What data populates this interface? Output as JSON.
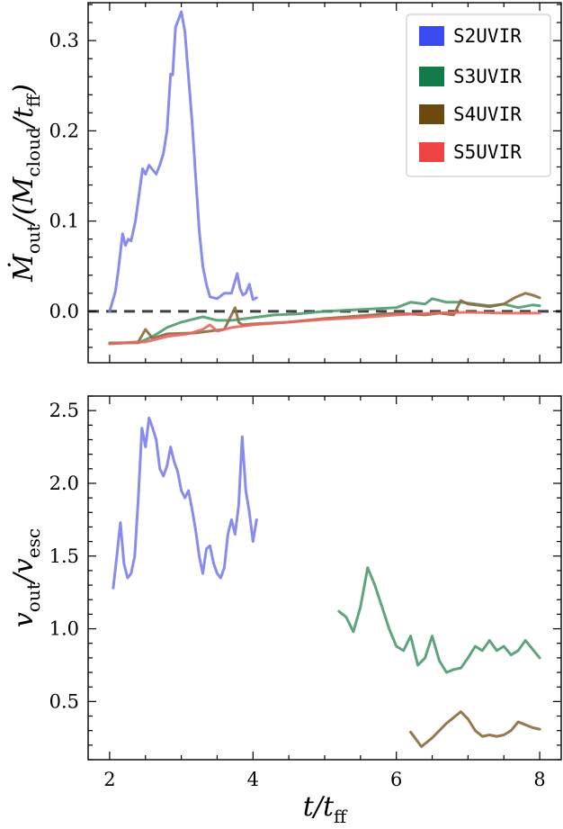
{
  "chart_data": [
    {
      "type": "line",
      "ylabel": "Ṁout/(Mcloud/tff)",
      "xlim": [
        1.7,
        8.3
      ],
      "ylim": [
        -0.057,
        0.342
      ],
      "xticks": [
        2,
        4,
        6,
        8
      ],
      "yticks": [
        0.0,
        0.1,
        0.2,
        0.3
      ],
      "ytick_labels": [
        "0.0",
        "0.1",
        "0.2",
        "0.3"
      ],
      "reference_line": {
        "y": 0.0,
        "style": "dashed",
        "color": "#404040"
      },
      "legend": {
        "placement": "top-right",
        "entries": [
          "S2UVIR",
          "S3UVIR",
          "S4UVIR",
          "S5UVIR"
        ]
      },
      "series": [
        {
          "name": "S2UVIR",
          "color": "#7B80E8",
          "x": [
            2.0,
            2.08,
            2.12,
            2.18,
            2.22,
            2.26,
            2.3,
            2.36,
            2.42,
            2.46,
            2.5,
            2.55,
            2.6,
            2.65,
            2.7,
            2.75,
            2.8,
            2.85,
            2.88,
            2.92,
            2.96,
            3.0,
            3.05,
            3.1,
            3.15,
            3.2,
            3.25,
            3.3,
            3.35,
            3.4,
            3.5,
            3.6,
            3.7,
            3.78,
            3.82,
            3.86,
            3.9,
            3.95,
            4.0,
            4.05
          ],
          "y": [
            0.0,
            0.022,
            0.045,
            0.086,
            0.073,
            0.08,
            0.078,
            0.1,
            0.135,
            0.158,
            0.152,
            0.162,
            0.157,
            0.152,
            0.162,
            0.175,
            0.2,
            0.263,
            0.262,
            0.315,
            0.323,
            0.332,
            0.31,
            0.26,
            0.21,
            0.15,
            0.09,
            0.05,
            0.03,
            0.016,
            0.014,
            0.02,
            0.02,
            0.042,
            0.025,
            0.018,
            0.02,
            0.03,
            0.013,
            0.015
          ]
        },
        {
          "name": "S3UVIR",
          "color": "#4E9A6F",
          "x": [
            2.0,
            2.4,
            2.6,
            2.8,
            3.0,
            3.2,
            3.3,
            3.5,
            3.7,
            3.9,
            4.1,
            4.3,
            4.6,
            5.0,
            5.5,
            6.0,
            6.2,
            6.4,
            6.5,
            6.7,
            6.9,
            7.1,
            7.3,
            7.5,
            7.7,
            7.9,
            8.0
          ],
          "y": [
            -0.035,
            -0.035,
            -0.028,
            -0.018,
            -0.012,
            -0.008,
            -0.006,
            -0.01,
            -0.01,
            -0.008,
            -0.006,
            -0.004,
            -0.003,
            0.0,
            0.002,
            0.004,
            0.01,
            0.008,
            0.014,
            0.01,
            0.01,
            0.008,
            0.006,
            0.008,
            0.004,
            0.007,
            0.006
          ]
        },
        {
          "name": "S4UVIR",
          "color": "#8C6A3E",
          "x": [
            2.0,
            2.4,
            2.5,
            2.6,
            2.8,
            3.2,
            3.6,
            3.75,
            3.8,
            3.85,
            4.0,
            4.5,
            5.0,
            5.5,
            6.0,
            6.2,
            6.4,
            6.6,
            6.8,
            6.9,
            7.0,
            7.3,
            7.5,
            7.65,
            7.8,
            7.9,
            8.0
          ],
          "y": [
            -0.036,
            -0.034,
            -0.02,
            -0.03,
            -0.025,
            -0.024,
            -0.02,
            0.004,
            -0.012,
            -0.015,
            -0.014,
            -0.012,
            -0.008,
            -0.005,
            -0.002,
            -0.003,
            -0.004,
            -0.002,
            -0.004,
            0.012,
            0.008,
            0.005,
            0.008,
            0.015,
            0.02,
            0.018,
            0.015
          ]
        },
        {
          "name": "S5UVIR",
          "color": "#E86760",
          "x": [
            2.0,
            2.5,
            2.8,
            3.1,
            3.3,
            3.4,
            3.5,
            3.7,
            4.0,
            4.5,
            5.0,
            5.5,
            6.0,
            6.5,
            7.0,
            7.5,
            8.0
          ],
          "y": [
            -0.036,
            -0.034,
            -0.028,
            -0.025,
            -0.02,
            -0.015,
            -0.022,
            -0.018,
            -0.015,
            -0.012,
            -0.009,
            -0.007,
            -0.004,
            -0.002,
            -0.001,
            -0.002,
            -0.002
          ]
        }
      ]
    },
    {
      "type": "line",
      "xlabel": "t/tff",
      "ylabel": "vout/vesc",
      "xlim": [
        1.7,
        8.3
      ],
      "ylim": [
        0.1,
        2.6
      ],
      "xticks": [
        2,
        4,
        6,
        8
      ],
      "xtick_labels": [
        "2",
        "4",
        "6",
        "8"
      ],
      "yticks": [
        0.5,
        1.0,
        1.5,
        2.0,
        2.5
      ],
      "ytick_labels": [
        "0.5",
        "1.0",
        "1.5",
        "2.0",
        "2.5"
      ],
      "series": [
        {
          "name": "S2UVIR",
          "color": "#7B80E8",
          "x": [
            2.05,
            2.1,
            2.15,
            2.2,
            2.25,
            2.3,
            2.35,
            2.4,
            2.45,
            2.5,
            2.55,
            2.6,
            2.65,
            2.7,
            2.75,
            2.8,
            2.85,
            2.9,
            2.95,
            3.0,
            3.05,
            3.1,
            3.15,
            3.2,
            3.25,
            3.3,
            3.35,
            3.4,
            3.45,
            3.5,
            3.55,
            3.6,
            3.65,
            3.7,
            3.75,
            3.8,
            3.85,
            3.9,
            3.95,
            4.0,
            4.05
          ],
          "y": [
            1.28,
            1.5,
            1.73,
            1.45,
            1.35,
            1.38,
            1.5,
            1.9,
            2.38,
            2.25,
            2.45,
            2.38,
            2.3,
            2.1,
            2.05,
            2.12,
            2.25,
            2.15,
            2.08,
            1.95,
            1.9,
            1.95,
            1.82,
            1.68,
            1.5,
            1.38,
            1.55,
            1.57,
            1.45,
            1.38,
            1.35,
            1.42,
            1.65,
            1.75,
            1.65,
            1.85,
            2.32,
            1.95,
            1.8,
            1.6,
            1.75
          ]
        },
        {
          "name": "S3UVIR",
          "color": "#4E9A6F",
          "x": [
            5.2,
            5.3,
            5.4,
            5.5,
            5.6,
            5.7,
            5.8,
            5.9,
            6.0,
            6.1,
            6.2,
            6.3,
            6.4,
            6.5,
            6.6,
            6.7,
            6.8,
            6.9,
            7.0,
            7.1,
            7.2,
            7.3,
            7.4,
            7.5,
            7.6,
            7.7,
            7.8,
            7.9,
            8.0
          ],
          "y": [
            1.12,
            1.08,
            0.98,
            1.15,
            1.42,
            1.3,
            1.15,
            1.0,
            0.88,
            0.85,
            0.95,
            0.75,
            0.8,
            0.95,
            0.78,
            0.7,
            0.72,
            0.73,
            0.8,
            0.88,
            0.85,
            0.92,
            0.85,
            0.88,
            0.82,
            0.85,
            0.92,
            0.86,
            0.8
          ]
        },
        {
          "name": "S4UVIR",
          "color": "#8C6A3E",
          "x": [
            6.2,
            6.35,
            6.5,
            6.7,
            6.9,
            7.0,
            7.1,
            7.2,
            7.3,
            7.4,
            7.5,
            7.6,
            7.7,
            7.8,
            7.9,
            8.0
          ],
          "y": [
            0.29,
            0.19,
            0.25,
            0.35,
            0.43,
            0.38,
            0.3,
            0.26,
            0.27,
            0.26,
            0.27,
            0.3,
            0.36,
            0.34,
            0.32,
            0.31
          ]
        }
      ]
    }
  ]
}
